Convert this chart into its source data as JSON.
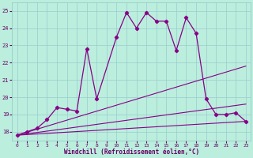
{
  "x": [
    0,
    1,
    2,
    3,
    4,
    5,
    6,
    7,
    8,
    9,
    10,
    11,
    12,
    13,
    14,
    15,
    16,
    17,
    18,
    19,
    20,
    21,
    22,
    23
  ],
  "main_curve": [
    17.8,
    18.0,
    18.2,
    18.7,
    19.4,
    19.3,
    19.2,
    22.8,
    19.9,
    null,
    23.5,
    24.9,
    24.0,
    24.9,
    24.4,
    24.4,
    22.7,
    24.6,
    23.7,
    19.9,
    19.0,
    19.0,
    19.1,
    18.6
  ],
  "line_steep": [
    [
      0,
      23
    ],
    [
      17.8,
      21.8
    ]
  ],
  "line_mid": [
    [
      0,
      23
    ],
    [
      17.8,
      19.6
    ]
  ],
  "line_flat": [
    [
      0,
      23
    ],
    [
      17.8,
      18.6
    ]
  ],
  "ylim": [
    17.5,
    25.5
  ],
  "xlim": [
    -0.5,
    23.5
  ],
  "yticks": [
    18,
    19,
    20,
    21,
    22,
    23,
    24,
    25
  ],
  "xticks": [
    0,
    1,
    2,
    3,
    4,
    5,
    6,
    7,
    8,
    9,
    10,
    11,
    12,
    13,
    14,
    15,
    16,
    17,
    18,
    19,
    20,
    21,
    22,
    23
  ],
  "xlabel": "Windchill (Refroidissement éolien,°C)",
  "line_color": "#880088",
  "bg_color": "#bbeedd",
  "grid_color": "#99cccc",
  "tick_color": "#660066",
  "label_color": "#660066"
}
